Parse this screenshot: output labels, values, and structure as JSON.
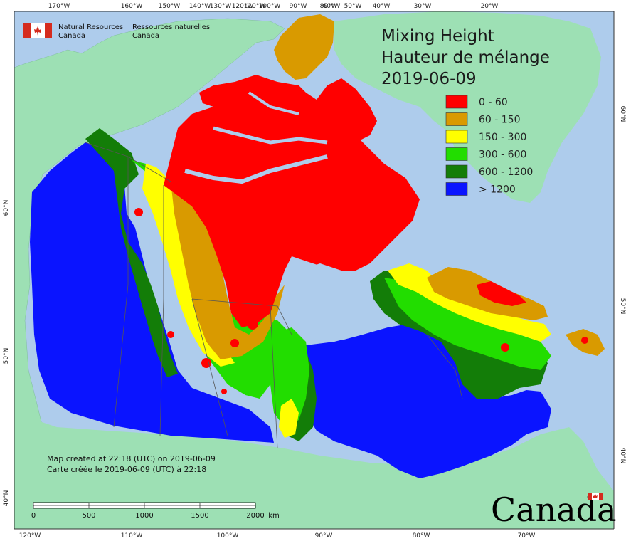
{
  "map": {
    "title_en": "Mixing Height",
    "title_fr": "Hauteur de mélange",
    "date": "2019-06-09",
    "agency_en_line1": "Natural Resources",
    "agency_en_line2": "Canada",
    "agency_fr_line1": "Ressources naturelles",
    "agency_fr_line2": "Canada",
    "credit_en": "Map created at 22:18 (UTC) on 2019-06-09",
    "credit_fr": "Carte créée le 2019-06-09 (UTC) à 22:18",
    "wordmark": "Canada",
    "scale_labels": [
      "0",
      "500",
      "1000",
      "1500",
      "2000",
      "km"
    ],
    "top_longitudes": [
      "170°W",
      "160°W",
      "150°W",
      "140°W",
      "130°W",
      "120°W",
      "110°W",
      "100°W",
      "90°W",
      "80°W",
      "60°W",
      "50°W",
      "40°W",
      "30°W",
      "20°W"
    ],
    "bottom_longitudes": [
      "120°W",
      "110°W",
      "100°W",
      "90°W",
      "80°W",
      "70°W"
    ],
    "left_latitudes": [
      "60°N",
      "50°N",
      "40°N"
    ],
    "right_latitudes": [
      "60°N",
      "50°N",
      "40°N"
    ],
    "legend": [
      {
        "label": "0 - 60",
        "color": "#ff0000"
      },
      {
        "label": "60 - 150",
        "color": "#d99a00"
      },
      {
        "label": "150 - 300",
        "color": "#ffff00"
      },
      {
        "label": "300 - 600",
        "color": "#22dd00"
      },
      {
        "label": "600 - 1200",
        "color": "#137d08"
      },
      {
        "label": "> 1200",
        "color": "#0a14ff"
      }
    ],
    "colors": {
      "ocean": "#aeccec",
      "land": "#9de0b4",
      "greenland": "#d99a00",
      "border": "#555555"
    }
  }
}
